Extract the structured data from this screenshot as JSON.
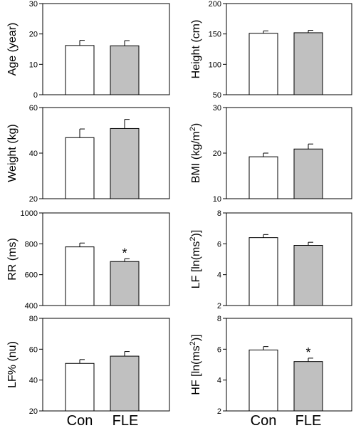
{
  "chart_data": [
    {
      "type": "bar",
      "categories": [
        "Con",
        "FLE"
      ],
      "ylabel_parts": [
        "Age (year)"
      ],
      "ylim": [
        0,
        30
      ],
      "yticks": [
        "0",
        "10",
        "20",
        "30"
      ],
      "values": [
        16.2,
        16.1
      ],
      "errors": [
        1.7,
        1.7
      ],
      "fill_colors": [
        "#ffffff",
        "#c0c0c0"
      ],
      "significance": [
        "",
        ""
      ]
    },
    {
      "type": "bar",
      "categories": [
        "Con",
        "FLE"
      ],
      "ylabel_parts": [
        "Height (cm)"
      ],
      "ylim": [
        50,
        200
      ],
      "yticks": [
        "50",
        "100",
        "150",
        "200"
      ],
      "values": [
        151,
        152
      ],
      "errors": [
        4,
        4
      ],
      "fill_colors": [
        "#ffffff",
        "#c0c0c0"
      ],
      "significance": [
        "",
        ""
      ]
    },
    {
      "type": "bar",
      "categories": [
        "Con",
        "FLE"
      ],
      "ylabel_parts": [
        "Weight (kg)"
      ],
      "ylim": [
        20,
        60
      ],
      "yticks": [
        "20",
        "40",
        "60"
      ],
      "values": [
        46.8,
        50.8
      ],
      "errors": [
        3.8,
        4.0
      ],
      "fill_colors": [
        "#ffffff",
        "#c0c0c0"
      ],
      "significance": [
        "",
        ""
      ]
    },
    {
      "type": "bar",
      "categories": [
        "Con",
        "FLE"
      ],
      "ylabel_parts": [
        "BMI (kg/m",
        "2",
        ")"
      ],
      "ylim": [
        10,
        30
      ],
      "yticks": [
        "10",
        "20",
        "30"
      ],
      "values": [
        19.2,
        20.9
      ],
      "errors": [
        0.8,
        1.1
      ],
      "fill_colors": [
        "#ffffff",
        "#c0c0c0"
      ],
      "significance": [
        "",
        ""
      ]
    },
    {
      "type": "bar",
      "categories": [
        "Con",
        "FLE"
      ],
      "ylabel_parts": [
        "RR (ms)"
      ],
      "ylim": [
        400,
        1000
      ],
      "yticks": [
        "400",
        "600",
        "800",
        "1000"
      ],
      "values": [
        780,
        685
      ],
      "errors": [
        25,
        18
      ],
      "fill_colors": [
        "#ffffff",
        "#c0c0c0"
      ],
      "significance": [
        "",
        "*"
      ]
    },
    {
      "type": "bar",
      "categories": [
        "Con",
        "FLE"
      ],
      "ylabel_parts": [
        "LF [ln(ms",
        "2",
        ")]"
      ],
      "ylim": [
        2,
        8
      ],
      "yticks": [
        "2",
        "4",
        "6",
        "8"
      ],
      "values": [
        6.4,
        5.9
      ],
      "errors": [
        0.2,
        0.2
      ],
      "fill_colors": [
        "#ffffff",
        "#c0c0c0"
      ],
      "significance": [
        "",
        ""
      ]
    },
    {
      "type": "bar",
      "categories": [
        "Con",
        "FLE"
      ],
      "ylabel_parts": [
        "LF% (nu)"
      ],
      "ylim": [
        20,
        80
      ],
      "yticks": [
        "20",
        "40",
        "60",
        "80"
      ],
      "values": [
        50.8,
        55.5
      ],
      "errors": [
        2.5,
        3.0
      ],
      "fill_colors": [
        "#ffffff",
        "#c0c0c0"
      ],
      "significance": [
        "",
        ""
      ]
    },
    {
      "type": "bar",
      "categories": [
        "Con",
        "FLE"
      ],
      "ylabel_parts": [
        "HF [ln(ms",
        "2",
        ")]"
      ],
      "ylim": [
        2,
        8
      ],
      "yticks": [
        "2",
        "4",
        "6",
        "8"
      ],
      "values": [
        5.95,
        5.2
      ],
      "errors": [
        0.22,
        0.22
      ],
      "fill_colors": [
        "#ffffff",
        "#c0c0c0"
      ],
      "significance": [
        "",
        "*"
      ]
    }
  ]
}
